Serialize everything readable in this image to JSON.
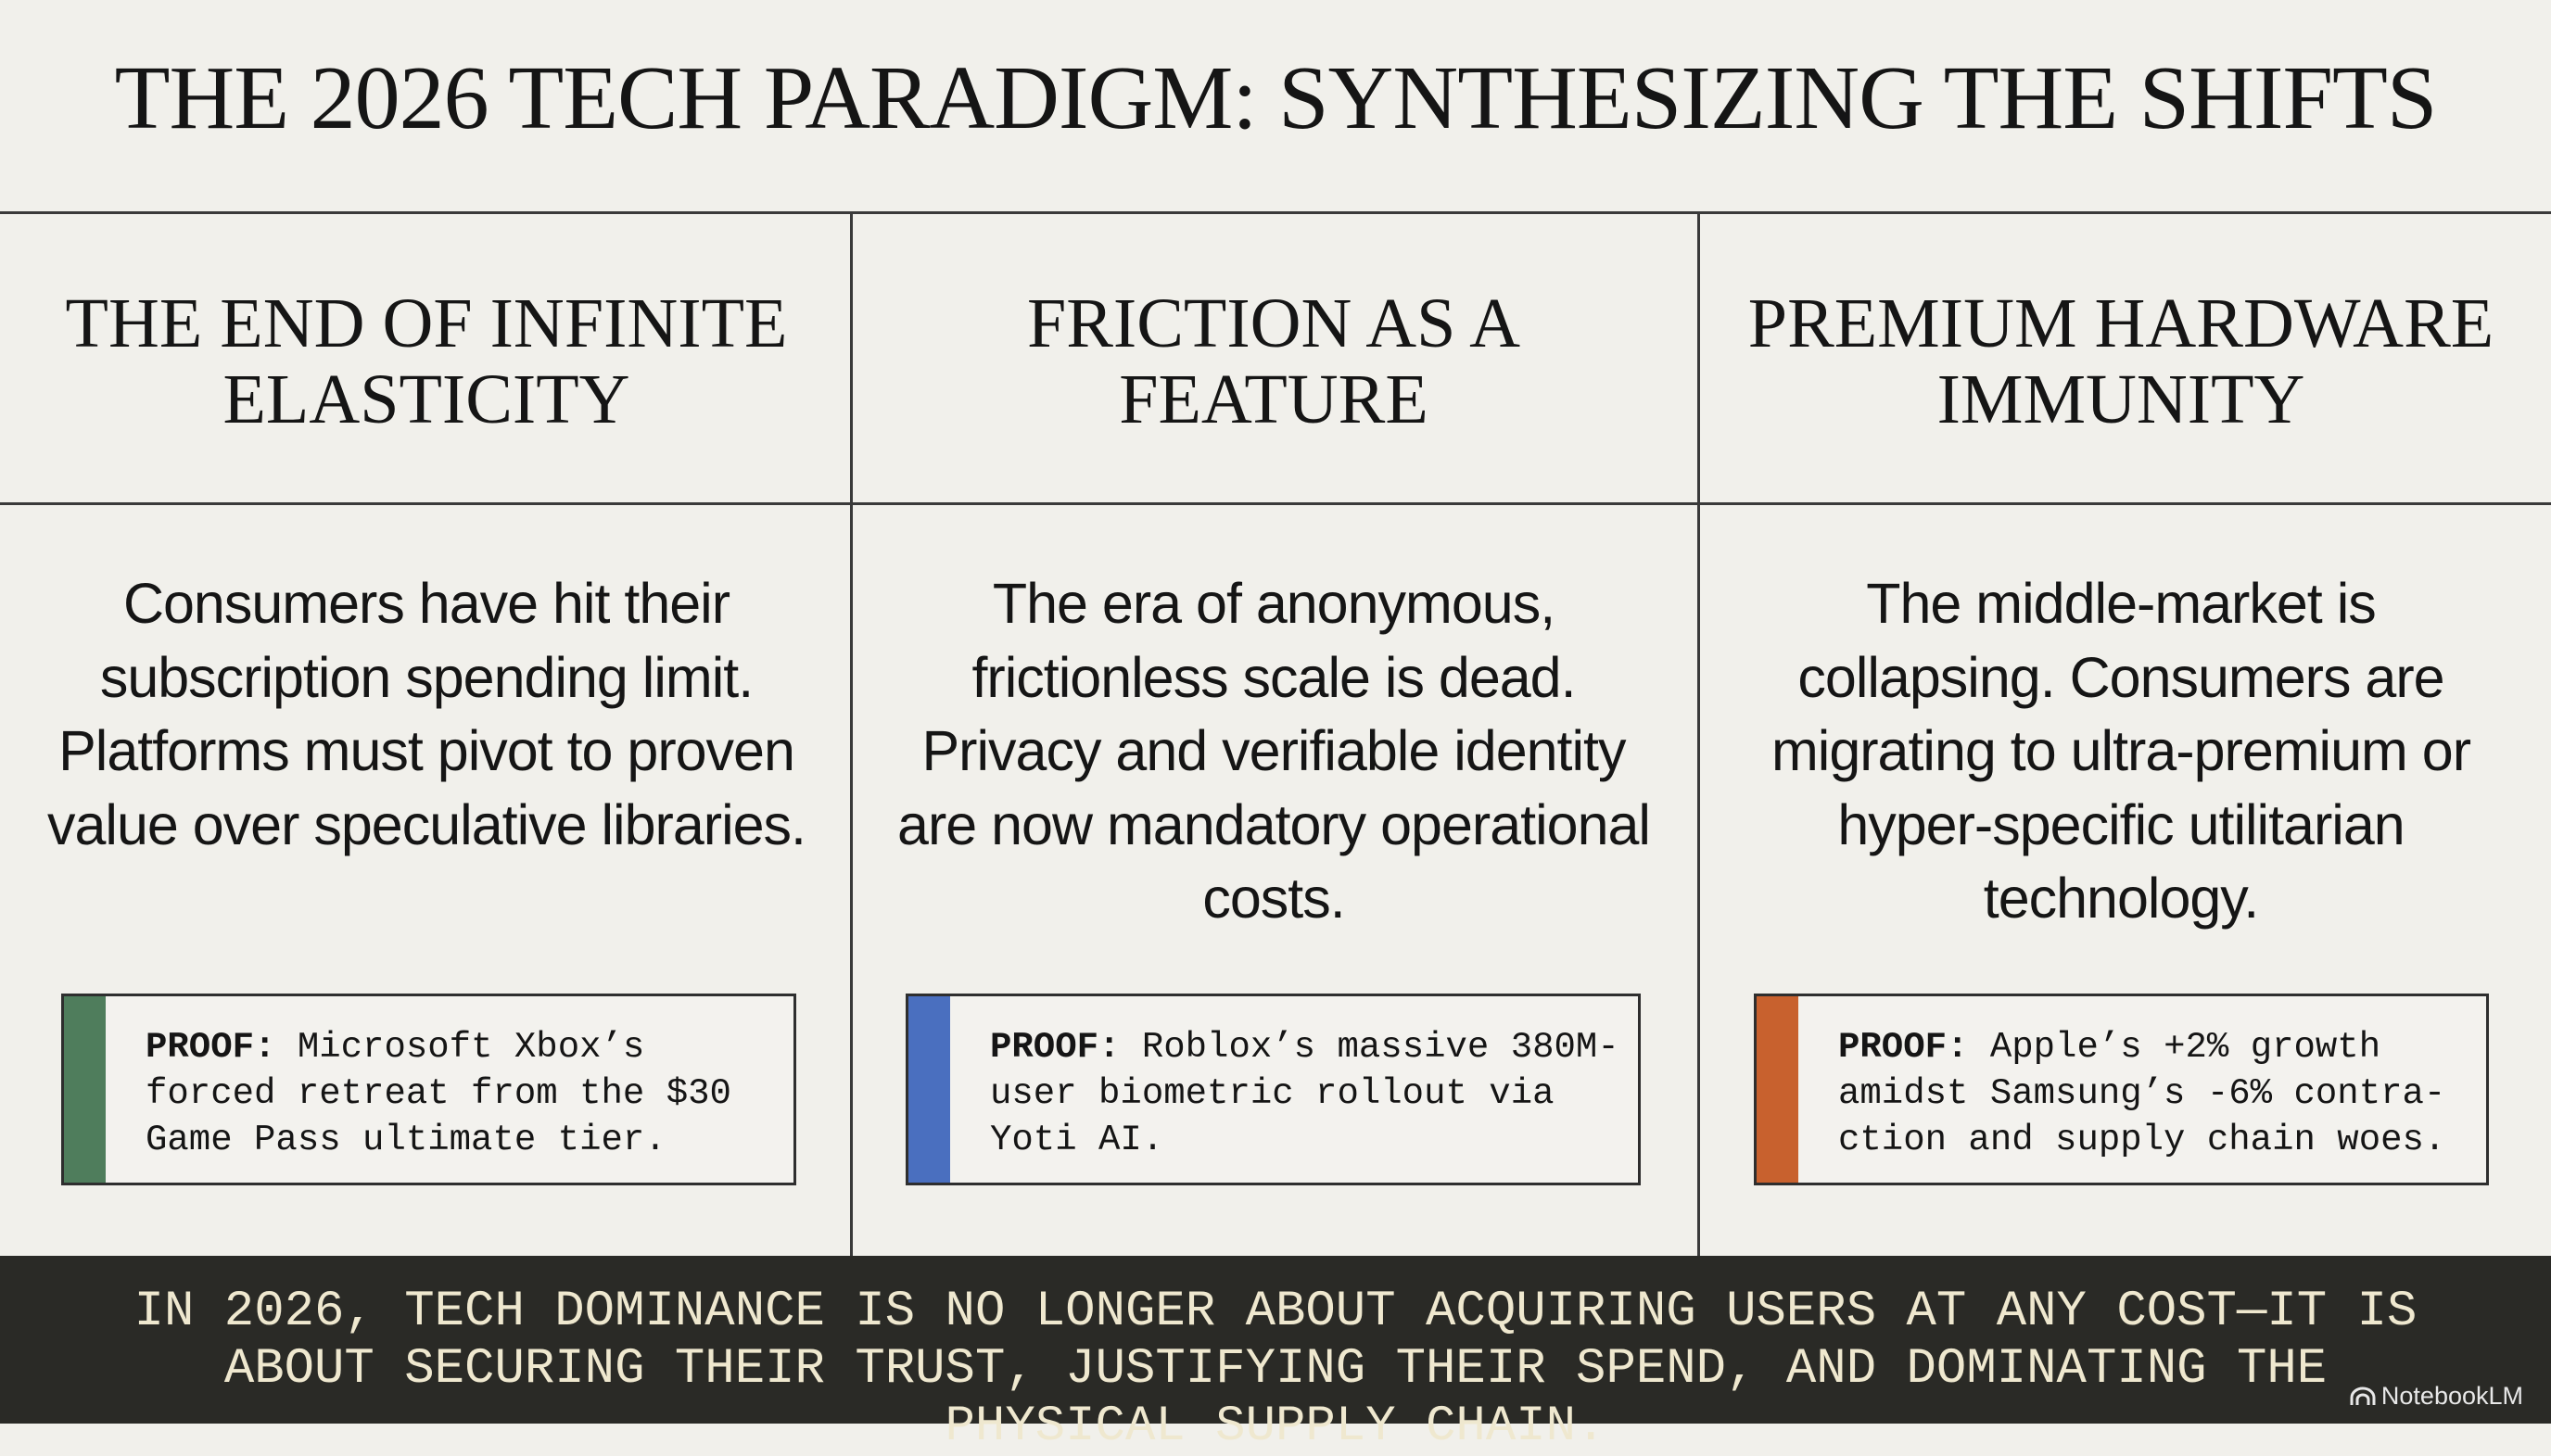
{
  "title": "THE 2026 TECH PARADIGM: SYNTHESIZING THE SHIFTS",
  "columns": [
    {
      "heading": "THE END OF INFINITE\nELASTICITY",
      "body": "Consumers have hit their subscription spending limit. Platforms must pivot to proven value over speculative libraries.",
      "proof_label": "PROOF:",
      "proof_text": "Microsoft Xbox’s forced retreat from the $30 Game Pass ultimate tier.",
      "accent": "#4f7d5c"
    },
    {
      "heading": "FRICTION AS A\nFEATURE",
      "body": "The era of anonymous, frictionless scale is dead. Privacy and verifiable identity are now mandatory operational costs.",
      "proof_label": "PROOF:",
      "proof_text": "Roblox’s massive 380M-user biometric rollout via Yoti AI.",
      "accent": "#4a6fbf"
    },
    {
      "heading": "PREMIUM HARDWARE\nIMMUNITY",
      "body": "The middle-market is collapsing. Consumers are migrating to ultra-premium or hyper-specific utilitarian technology.",
      "proof_label": "PROOF:",
      "proof_text": "Apple’s +2% growth amidst Samsung’s -6% contra-ction and supply chain woes.",
      "accent": "#c8612e"
    }
  ],
  "footer": {
    "text": "IN 2026, TECH DOMINANCE IS NO LONGER ABOUT ACQUIRING USERS AT ANY COST—IT IS ABOUT SECURING THEIR TRUST, JUSTIFYING THEIR SPEND, AND DOMINATING THE PHYSICAL SUPPLY CHAIN.",
    "brand": "NotebookLM",
    "brand_icon": "notebooklm-logo-icon"
  }
}
